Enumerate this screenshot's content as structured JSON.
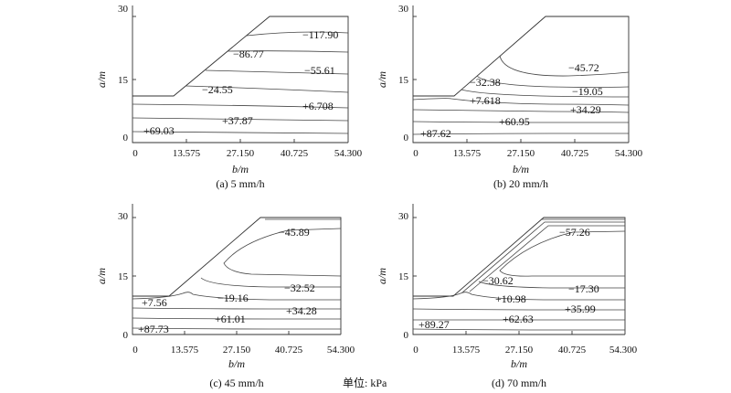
{
  "figure": {
    "unit_note": "单位: kPa",
    "x_ticks": [
      "0",
      "13.575",
      "27.150",
      "40.725",
      "54.300"
    ],
    "y_ticks": [
      "0",
      "15",
      "30"
    ],
    "xlabel": "b/m",
    "ylabel": "a/m",
    "panels": [
      {
        "caption": "(a) 5 mm/h",
        "labels": [
          "−117.90",
          "−86.77",
          "−55.61",
          "−24.55",
          "+6.708",
          "+37.87",
          "+69.03"
        ]
      },
      {
        "caption": "(b) 20 mm/h",
        "labels": [
          "−45.72",
          "−32.38",
          "−19.05",
          "+7.618",
          "+34.29",
          "+60.95",
          "+87.62"
        ]
      },
      {
        "caption": "(c) 45 mm/h",
        "labels": [
          "−45.89",
          "−32.52",
          "−19.16",
          "+7.56",
          "+34.28",
          "+61.01",
          "+87.73"
        ]
      },
      {
        "caption": "(d) 70 mm/h",
        "labels": [
          "−57.26",
          "−30.62",
          "−17.30",
          "+10.98",
          "+35.99",
          "+62.63",
          "+89.27"
        ]
      }
    ]
  }
}
